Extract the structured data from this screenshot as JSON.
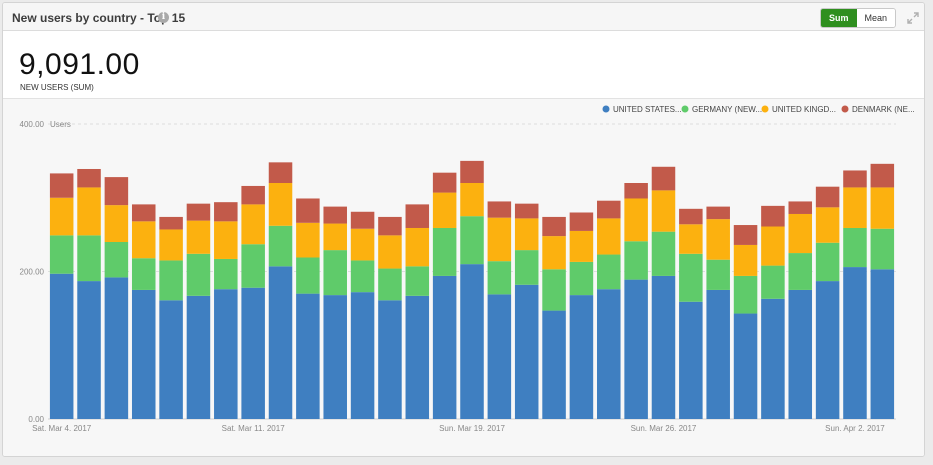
{
  "header": {
    "title": "New users by country - Top 15",
    "info_icon": "info-icon",
    "toggle": {
      "sum_label": "Sum",
      "mean_label": "Mean",
      "active": "Sum"
    },
    "expand_icon": "expand-icon"
  },
  "summary": {
    "value": "9,091.00",
    "label": "NEW USERS (SUM)"
  },
  "colors": {
    "united_states": "#3f7fc1",
    "germany": "#5fcb6a",
    "united_kingdom": "#fcb10f",
    "denmark": "#c25a4a",
    "active_button": "#2f8f1f"
  },
  "chart_data": {
    "type": "bar",
    "stacked": true,
    "ylabel": "Users",
    "ylim": [
      0,
      400
    ],
    "yticks": [
      "0.00",
      "200.00",
      "400.00"
    ],
    "grid": true,
    "legend_position": "top-right",
    "x_tick_labels": [
      "Sat. Mar 4. 2017",
      "Sat. Mar 11. 2017",
      "Sun. Mar 19. 2017",
      "Sun. Mar 26. 2017",
      "Sun. Apr 2. 2017"
    ],
    "categories": [
      "2017-03-04",
      "2017-03-05",
      "2017-03-06",
      "2017-03-07",
      "2017-03-08",
      "2017-03-09",
      "2017-03-10",
      "2017-03-11",
      "2017-03-12",
      "2017-03-13",
      "2017-03-14",
      "2017-03-15",
      "2017-03-16",
      "2017-03-17",
      "2017-03-18",
      "2017-03-19",
      "2017-03-20",
      "2017-03-21",
      "2017-03-22",
      "2017-03-23",
      "2017-03-24",
      "2017-03-25",
      "2017-03-26",
      "2017-03-27",
      "2017-03-28",
      "2017-03-29",
      "2017-03-30",
      "2017-03-31",
      "2017-04-01",
      "2017-04-02",
      "2017-04-03"
    ],
    "series": [
      {
        "name": "UNITED STATES...",
        "key": "united_states",
        "values": [
          197,
          187,
          192,
          175,
          161,
          167,
          176,
          178,
          207,
          170,
          168,
          172,
          161,
          167,
          194,
          210,
          169,
          182,
          147,
          168,
          176,
          189,
          194,
          159,
          175,
          143,
          163,
          175,
          187,
          206,
          203
        ]
      },
      {
        "name": "GERMANY (NEW...",
        "key": "germany",
        "values": [
          52,
          62,
          48,
          43,
          54,
          57,
          41,
          59,
          55,
          49,
          61,
          43,
          43,
          40,
          65,
          65,
          45,
          47,
          56,
          45,
          47,
          52,
          60,
          65,
          41,
          51,
          45,
          50,
          52,
          53,
          55
        ]
      },
      {
        "name": "UNITED KINGD...",
        "key": "united_kingdom",
        "values": [
          51,
          65,
          50,
          50,
          42,
          45,
          51,
          54,
          58,
          47,
          36,
          43,
          45,
          52,
          48,
          45,
          59,
          43,
          45,
          42,
          49,
          58,
          56,
          40,
          55,
          42,
          53,
          53,
          48,
          55,
          56
        ]
      },
      {
        "name": "DENMARK (NE...",
        "key": "denmark",
        "values": [
          33,
          25,
          38,
          23,
          17,
          23,
          26,
          25,
          28,
          33,
          23,
          23,
          25,
          32,
          27,
          30,
          22,
          20,
          26,
          25,
          24,
          21,
          32,
          21,
          17,
          27,
          28,
          17,
          28,
          23,
          32
        ]
      }
    ]
  }
}
